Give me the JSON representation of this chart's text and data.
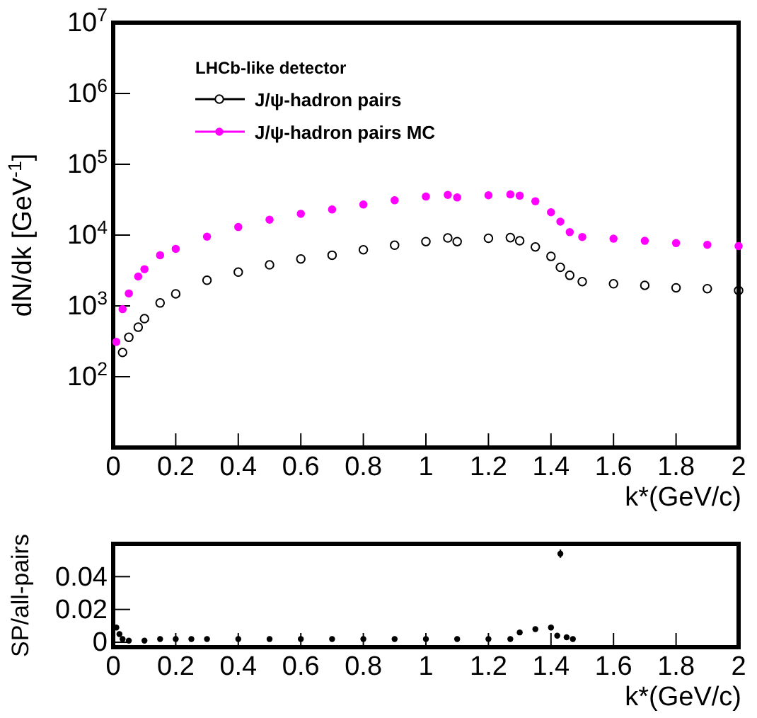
{
  "chart_data": [
    {
      "type": "scatter",
      "ylabel": "dN/dk [GeV$^{-1}$]",
      "xlabel": "k*(GeV/c)",
      "log": "y",
      "xlim": [
        0,
        2
      ],
      "ylim": [
        10,
        10000000
      ],
      "xticks": [
        0,
        0.2,
        0.4,
        0.6,
        0.8,
        1,
        1.2,
        1.4,
        1.6,
        1.8,
        2
      ],
      "yticks": [
        {
          "value": 100,
          "label": "10$^{2}$"
        },
        {
          "value": 1000,
          "label": "10$^{3}$"
        },
        {
          "value": 10000,
          "label": "10$^{4}$"
        },
        {
          "value": 100000,
          "label": "10$^{5}$"
        },
        {
          "value": 1000000,
          "label": "10$^{6}$"
        },
        {
          "value": 10000000,
          "label": "10$^{7}$"
        }
      ],
      "legend": "top left",
      "legend_title": "LHCb-like detector",
      "grid": false,
      "marker": "circle",
      "series": [
        {
          "name": "J/ψ-hadron pairs",
          "color": "#000000",
          "x": [
            0.03,
            0.05,
            0.08,
            0.1,
            0.15,
            0.2,
            0.3,
            0.4,
            0.5,
            0.6,
            0.7,
            0.8,
            0.9,
            1.0,
            1.07,
            1.1,
            1.2,
            1.27,
            1.3,
            1.35,
            1.4,
            1.43,
            1.46,
            1.5,
            1.6,
            1.7,
            1.8,
            1.9,
            2.0
          ],
          "values": [
            220,
            360,
            500,
            660,
            1100,
            1480,
            2300,
            3000,
            3800,
            4600,
            5200,
            6200,
            7200,
            8100,
            9100,
            8100,
            9000,
            9200,
            8300,
            6800,
            5000,
            3500,
            2700,
            2200,
            2050,
            1950,
            1800,
            1750,
            1650
          ]
        },
        {
          "name": "J/ψ-hadron pairs MC",
          "color": "#ff00ff",
          "x": [
            0.01,
            0.03,
            0.05,
            0.08,
            0.1,
            0.15,
            0.2,
            0.3,
            0.4,
            0.5,
            0.6,
            0.7,
            0.8,
            0.9,
            1.0,
            1.07,
            1.1,
            1.2,
            1.27,
            1.3,
            1.35,
            1.4,
            1.43,
            1.46,
            1.5,
            1.6,
            1.7,
            1.8,
            1.9,
            2.0
          ],
          "values": [
            310,
            900,
            1500,
            2600,
            3300,
            5200,
            6400,
            9500,
            13000,
            16500,
            20000,
            23000,
            27000,
            31000,
            35000,
            37000,
            34000,
            36500,
            37500,
            36000,
            30000,
            21000,
            15500,
            11000,
            9400,
            8900,
            8300,
            7700,
            7300,
            7000
          ]
        }
      ]
    },
    {
      "type": "scatter",
      "ylabel": "SP/all-pairs",
      "xlabel": "k*(GeV/c)",
      "xlim": [
        0,
        2
      ],
      "ylim": [
        -0.003,
        0.06
      ],
      "xticks": [
        0,
        0.2,
        0.4,
        0.6,
        0.8,
        1,
        1.2,
        1.4,
        1.6,
        1.8,
        2
      ],
      "yticks": [
        0,
        0.02,
        0.04
      ],
      "grid": false,
      "marker": "circle",
      "series": [
        {
          "color": "#000000",
          "x": [
            0.01,
            0.02,
            0.03,
            0.05,
            0.1,
            0.15,
            0.2,
            0.25,
            0.3,
            0.4,
            0.5,
            0.6,
            0.7,
            0.8,
            0.9,
            1.0,
            1.1,
            1.2,
            1.27,
            1.3,
            1.35,
            1.4,
            1.42,
            1.43,
            1.45,
            1.47
          ],
          "values": [
            0.009,
            0.005,
            0.002,
            0.001,
            0.001,
            0.002,
            0.002,
            0.002,
            0.002,
            0.002,
            0.002,
            0.002,
            0.002,
            0.002,
            0.002,
            0.002,
            0.002,
            0.002,
            0.002,
            0.006,
            0.008,
            0.009,
            0.004,
            0.054,
            0.003,
            0.002
          ],
          "errors": [
            null,
            null,
            null,
            null,
            null,
            null,
            null,
            null,
            null,
            null,
            null,
            null,
            null,
            null,
            null,
            null,
            null,
            null,
            null,
            null,
            null,
            null,
            null,
            0.0025,
            null,
            null
          ]
        }
      ]
    }
  ]
}
